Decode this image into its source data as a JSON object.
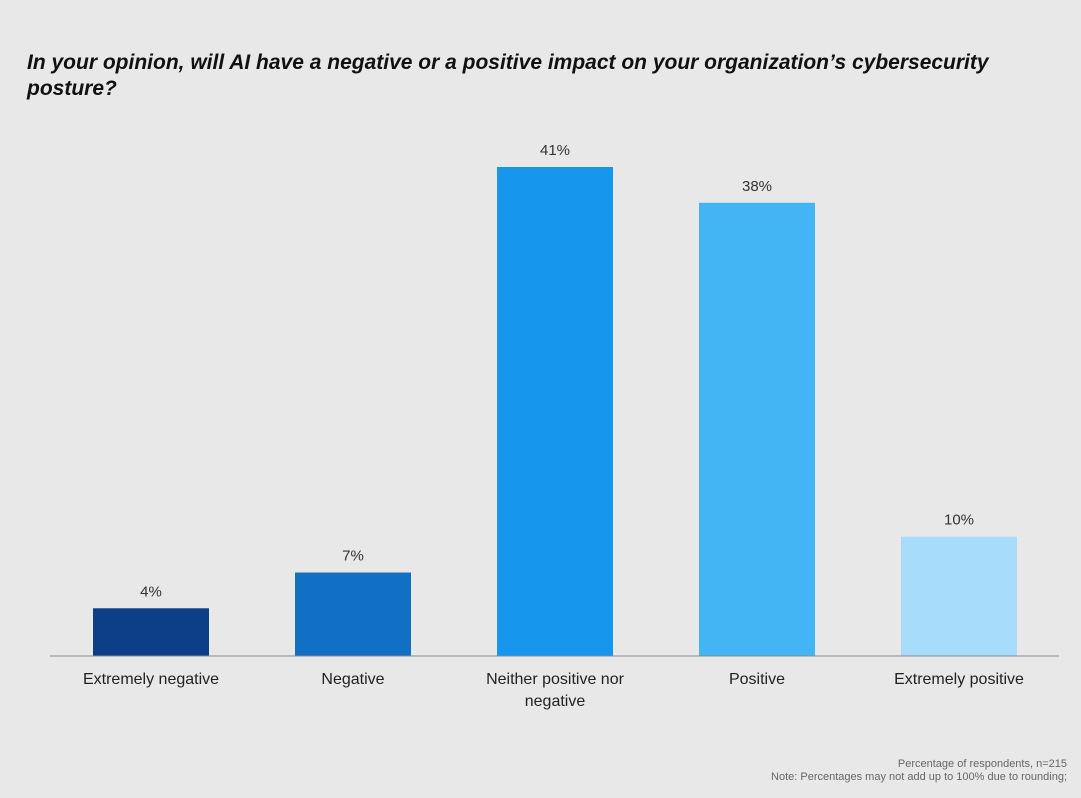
{
  "chart_data": {
    "type": "bar",
    "title": "In your opinion, will AI have a negative or a positive impact on your organization’s cybersecurity posture?",
    "categories": [
      "Extremely negative",
      "Negative",
      "Neither positive nor negative",
      "Positive",
      "Extremely positive"
    ],
    "values": [
      4,
      7,
      41,
      38,
      10
    ],
    "value_labels": [
      "4%",
      "7%",
      "41%",
      "38%",
      "10%"
    ],
    "colors": [
      "#0b3f87",
      "#1170c4",
      "#1796ee",
      "#43b4f4",
      "#a7dcfa"
    ],
    "grid": false,
    "notes": [
      "Percentage of respondents, n=215",
      "Note: Percentages may not add up to 100% due to rounding;"
    ]
  }
}
